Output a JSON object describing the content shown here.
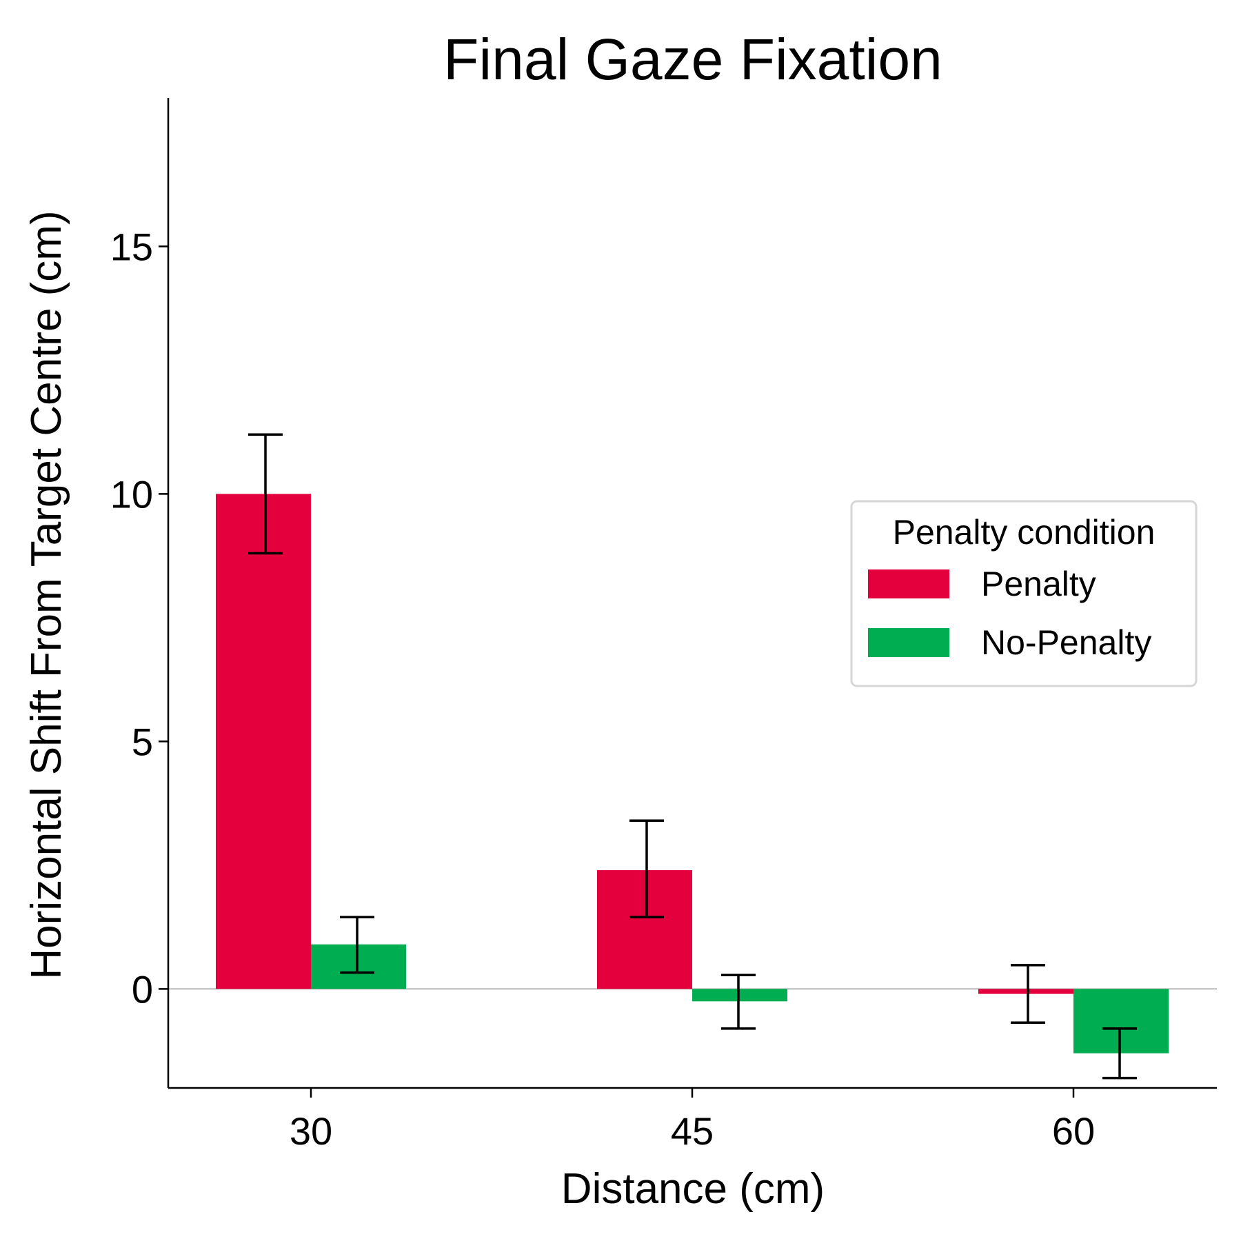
{
  "chart_data": {
    "type": "bar",
    "title": "Final Gaze Fixation",
    "xlabel": "Distance (cm)",
    "ylabel": "Horizontal Shift From Target Centre (cm)",
    "categories": [
      "30",
      "45",
      "60"
    ],
    "ylim": [
      -2.0,
      18.0
    ],
    "yticks": [
      0,
      5,
      10,
      15
    ],
    "ytick_labels": [
      "0",
      "5",
      "10",
      "15"
    ],
    "grid": false,
    "zero_line": true,
    "legend": {
      "title": "Penalty condition",
      "placement": "center-right"
    },
    "series": [
      {
        "name": "Penalty",
        "color": "#e3003c",
        "values": [
          10.0,
          2.4,
          -0.1
        ],
        "err_low": [
          8.8,
          1.45,
          -0.68
        ],
        "err_high": [
          11.2,
          3.4,
          0.48
        ]
      },
      {
        "name": "No-Penalty",
        "color": "#00ad50",
        "values": [
          0.9,
          -0.25,
          -1.3
        ],
        "err_low": [
          0.33,
          -0.8,
          -1.8
        ],
        "err_high": [
          1.45,
          0.28,
          -0.8
        ]
      }
    ]
  }
}
